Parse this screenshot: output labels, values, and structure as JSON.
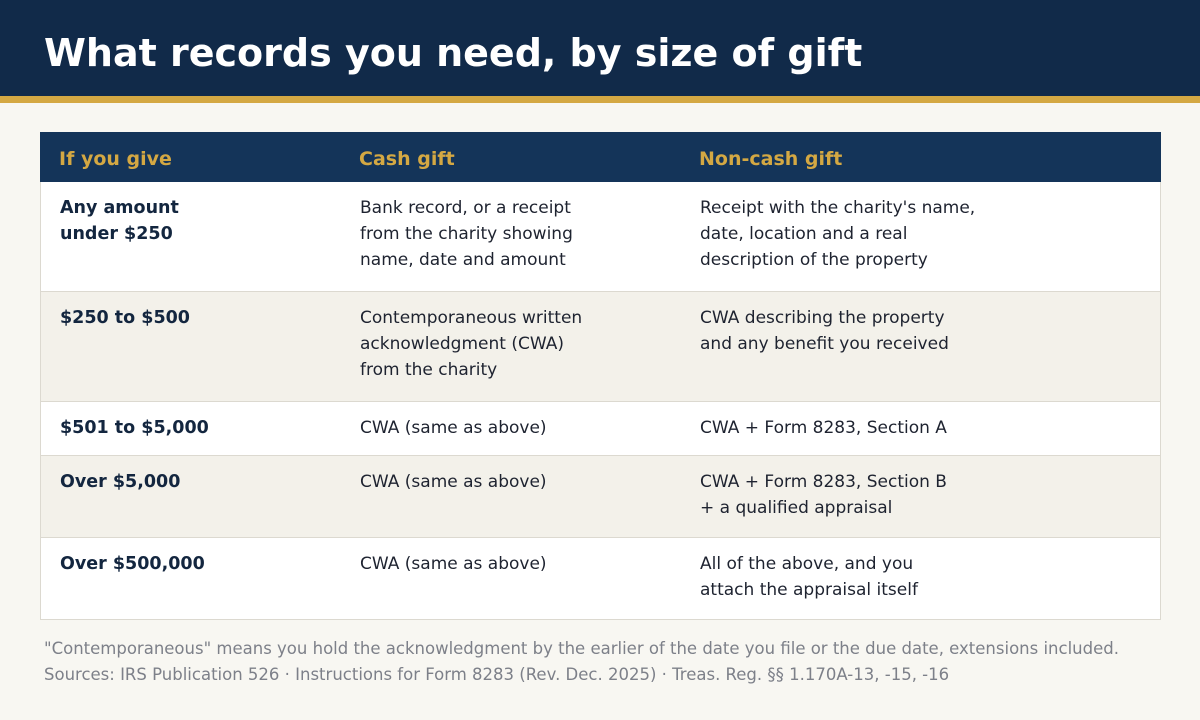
{
  "header": {
    "title": "What records you need, by size of gift"
  },
  "table": {
    "columns": [
      "If you give",
      "Cash gift",
      "Non-cash gift"
    ],
    "rows": [
      {
        "amount": "Any amount\nunder $250",
        "cash": "Bank record, or a receipt\nfrom the charity showing\nname, date and amount",
        "noncash": "Receipt with the charity's name,\ndate, location and a real\ndescription of the property"
      },
      {
        "amount": "$250 to $500",
        "cash": "Contemporaneous written\nacknowledgment (CWA)\nfrom the charity",
        "noncash": "CWA describing the property\nand any benefit you received"
      },
      {
        "amount": "$501 to $5,000",
        "cash": "CWA (same as above)",
        "noncash": "CWA + Form 8283, Section A"
      },
      {
        "amount": "Over $5,000",
        "cash": "CWA (same as above)",
        "noncash": "CWA + Form 8283, Section B\n+ a qualified appraisal"
      },
      {
        "amount": "Over $500,000",
        "cash": "CWA (same as above)",
        "noncash": "All of the above, and you\nattach the appraisal itself"
      }
    ]
  },
  "footnote": {
    "definition": "\"Contemporaneous\" means you hold the acknowledgment by the earlier of the date you file or the due date, extensions included.",
    "sources": "Sources: IRS Publication 526 · Instructions for Form 8283 (Rev. Dec. 2025) · Treas. Reg. §§ 1.170A-13, -15, -16"
  }
}
